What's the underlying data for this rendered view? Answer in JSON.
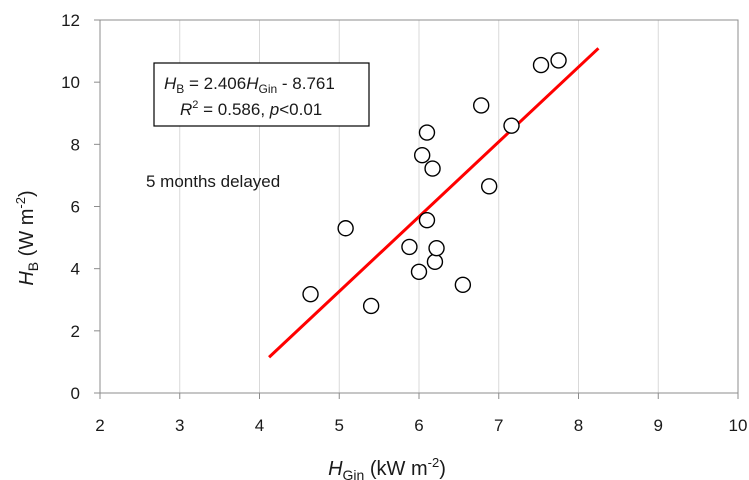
{
  "chart_data": {
    "type": "scatter",
    "xlabel": {
      "main": "H",
      "sub": "Gin",
      "unit": " (kW m",
      "sup": "-2",
      "close": ")"
    },
    "ylabel": {
      "main": "H",
      "sub": "B",
      "unit": " (W m",
      "sup": "-2",
      "close": ")"
    },
    "xlim": [
      2,
      10
    ],
    "ylim": [
      0,
      12
    ],
    "xticks": [
      "2",
      "3",
      "4",
      "5",
      "6",
      "7",
      "8",
      "9",
      "10"
    ],
    "yticks": [
      "0",
      "2",
      "4",
      "6",
      "8",
      "10",
      "12"
    ],
    "grid": {
      "vertical": true,
      "horizontal": false
    },
    "points": [
      {
        "x": 4.64,
        "y": 3.18
      },
      {
        "x": 5.08,
        "y": 5.3
      },
      {
        "x": 5.4,
        "y": 2.8
      },
      {
        "x": 5.88,
        "y": 4.7
      },
      {
        "x": 6.0,
        "y": 3.9
      },
      {
        "x": 6.04,
        "y": 7.65
      },
      {
        "x": 6.1,
        "y": 8.38
      },
      {
        "x": 6.1,
        "y": 5.56
      },
      {
        "x": 6.17,
        "y": 7.22
      },
      {
        "x": 6.2,
        "y": 4.22
      },
      {
        "x": 6.22,
        "y": 4.66
      },
      {
        "x": 6.55,
        "y": 3.48
      },
      {
        "x": 6.78,
        "y": 9.25
      },
      {
        "x": 6.88,
        "y": 6.65
      },
      {
        "x": 7.16,
        "y": 8.6
      },
      {
        "x": 7.53,
        "y": 10.55
      },
      {
        "x": 7.75,
        "y": 10.7
      }
    ],
    "trendline": {
      "x": [
        4.12,
        8.25
      ],
      "y": [
        1.15,
        11.09
      ],
      "color": "#ff0000"
    },
    "annotation": {
      "eq_lhs": "H",
      "eq_lhs_sub": "B",
      "eq_mid": " = 2.406",
      "eq_var": "H",
      "eq_var_sub": "Gin",
      "eq_tail": " - 8.761",
      "r2_label": "R",
      "r2_sup": "2",
      "r2_tail": " = 0.586, ",
      "p_label": "p",
      "p_tail": "<0.01"
    },
    "note": "5 months delayed"
  },
  "colors": {
    "trendline": "#ff0000",
    "grid": "#d9d9d9",
    "axis": "#8c8c8c",
    "marker": "#000000"
  }
}
